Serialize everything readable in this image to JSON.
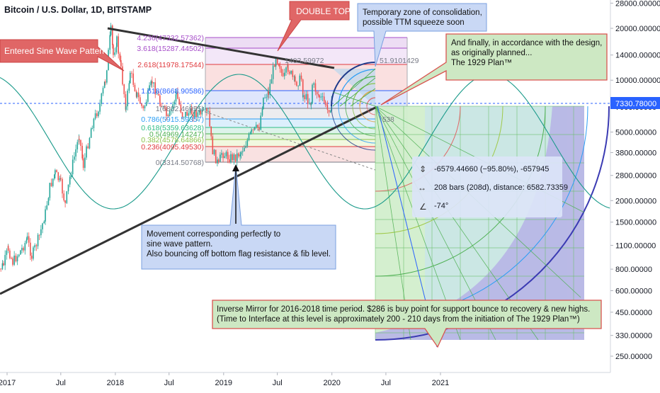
{
  "chart_data": {
    "type": "line",
    "title": "Bitcoin / U.S. Dollar, 1D, BITSTAMP",
    "scale": "log",
    "ylim": [
      220,
      28000
    ],
    "xlabel": "",
    "ylabel": "",
    "grid": false,
    "x_ticks": [
      {
        "date": "2017-01-01",
        "label": "2017"
      },
      {
        "date": "2017-07-01",
        "label": "Jul"
      },
      {
        "date": "2018-01-01",
        "label": "2018"
      },
      {
        "date": "2018-07-01",
        "label": "Jul"
      },
      {
        "date": "2019-01-01",
        "label": "2019"
      },
      {
        "date": "2019-07-01",
        "label": "Jul"
      },
      {
        "date": "2020-01-01",
        "label": "2020"
      },
      {
        "date": "2020-07-01",
        "label": "Jul"
      },
      {
        "date": "2021-01-01",
        "label": "2021"
      }
    ],
    "y_ticks": [
      "28000.00000",
      "20000.00000",
      "14000.00000",
      "10000.00000",
      "7000.00000",
      "5000.00000",
      "3800.00000",
      "2800.00000",
      "2000.00000",
      "1500.00000",
      "1100.00000",
      "800.00000",
      "600.00000",
      "450.00000",
      "330.00000",
      "250.00000"
    ],
    "y_tick_values": [
      28000,
      20000,
      14000,
      10000,
      7000,
      5000,
      3800,
      2800,
      2000,
      1500,
      1100,
      800,
      600,
      450,
      330,
      250
    ],
    "last_price": {
      "value": 7330.78,
      "label": "7330.78000",
      "color": "#2962ff"
    },
    "price_series": [
      {
        "x": "2016-11-20",
        "y": 740
      },
      {
        "x": "2016-12-20",
        "y": 850
      },
      {
        "x": "2017-01-05",
        "y": 1050
      },
      {
        "x": "2017-01-20",
        "y": 880
      },
      {
        "x": "2017-02-20",
        "y": 1050
      },
      {
        "x": "2017-03-10",
        "y": 1200
      },
      {
        "x": "2017-03-25",
        "y": 950
      },
      {
        "x": "2017-04-20",
        "y": 1250
      },
      {
        "x": "2017-05-10",
        "y": 1700
      },
      {
        "x": "2017-05-25",
        "y": 2400
      },
      {
        "x": "2017-06-12",
        "y": 2900
      },
      {
        "x": "2017-07-01",
        "y": 2500
      },
      {
        "x": "2017-07-16",
        "y": 1900
      },
      {
        "x": "2017-08-05",
        "y": 3000
      },
      {
        "x": "2017-09-01",
        "y": 4800
      },
      {
        "x": "2017-09-15",
        "y": 3200
      },
      {
        "x": "2017-10-15",
        "y": 5600
      },
      {
        "x": "2017-11-10",
        "y": 7200
      },
      {
        "x": "2017-11-28",
        "y": 10000
      },
      {
        "x": "2017-12-17",
        "y": 19500
      },
      {
        "x": "2017-12-25",
        "y": 14000
      },
      {
        "x": "2018-01-06",
        "y": 17000
      },
      {
        "x": "2018-01-20",
        "y": 11500
      },
      {
        "x": "2018-02-06",
        "y": 6900
      },
      {
        "x": "2018-02-20",
        "y": 11200
      },
      {
        "x": "2018-03-15",
        "y": 8200
      },
      {
        "x": "2018-04-05",
        "y": 6700
      },
      {
        "x": "2018-05-05",
        "y": 9800
      },
      {
        "x": "2018-06-01",
        "y": 7500
      },
      {
        "x": "2018-06-28",
        "y": 5900
      },
      {
        "x": "2018-07-25",
        "y": 8300
      },
      {
        "x": "2018-08-15",
        "y": 6300
      },
      {
        "x": "2018-09-15",
        "y": 6500
      },
      {
        "x": "2018-10-15",
        "y": 6400
      },
      {
        "x": "2018-11-10",
        "y": 6400
      },
      {
        "x": "2018-11-20",
        "y": 4500
      },
      {
        "x": "2018-11-25",
        "y": 3900
      },
      {
        "x": "2018-12-15",
        "y": 3200
      },
      {
        "x": "2018-12-25",
        "y": 3800
      },
      {
        "x": "2019-01-20",
        "y": 3550
      },
      {
        "x": "2019-02-10",
        "y": 3600
      },
      {
        "x": "2019-03-01",
        "y": 3850
      },
      {
        "x": "2019-04-05",
        "y": 4950
      },
      {
        "x": "2019-05-01",
        "y": 5400
      },
      {
        "x": "2019-05-15",
        "y": 7900
      },
      {
        "x": "2019-06-01",
        "y": 8500
      },
      {
        "x": "2019-06-26",
        "y": 13800
      },
      {
        "x": "2019-07-10",
        "y": 12200
      },
      {
        "x": "2019-07-20",
        "y": 10000
      },
      {
        "x": "2019-08-06",
        "y": 11800
      },
      {
        "x": "2019-08-30",
        "y": 9600
      },
      {
        "x": "2019-09-20",
        "y": 10200
      },
      {
        "x": "2019-09-26",
        "y": 8200
      },
      {
        "x": "2019-10-23",
        "y": 7400
      },
      {
        "x": "2019-10-27",
        "y": 9500
      },
      {
        "x": "2019-11-20",
        "y": 8000
      },
      {
        "x": "2019-12-10",
        "y": 7300
      },
      {
        "x": "2019-12-17",
        "y": 6700
      },
      {
        "x": "2019-12-31",
        "y": 7200
      },
      {
        "x": "2020-01-05",
        "y": 7330.78
      }
    ],
    "fib_levels": [
      {
        "label": "4.236(47332.57362)",
        "color": "#a64dc9",
        "fill": "#ead7f2"
      },
      {
        "label": "3.618(15287.44502)",
        "color": "#a64dc9",
        "fill": "#f1e3f7"
      },
      {
        "label": "2.618(11978.17544)",
        "color": "#e03a3e",
        "fill": "#f9dada"
      },
      {
        "label": "1.618(8668.90586)",
        "color": "#2962ff",
        "fill": "#d9e2fb"
      },
      {
        "label": "1(6802.46955)",
        "color": "#787b86",
        "fill": "#e9e9ec"
      },
      {
        "label": "0.786(5915.59357)",
        "color": "#2a9df4",
        "fill": "#d6ecfb"
      },
      {
        "label": "0.618(5359.63628)",
        "color": "#2ebd85",
        "fill": "#d7f1e6"
      },
      {
        "label": "0.5(4969.14247)",
        "color": "#4caf50",
        "fill": "#dff1d9"
      },
      {
        "label": "0.382(4578.64866)",
        "color": "#8bc34a",
        "fill": "#eef7d9"
      },
      {
        "label": "0.236(4095.49530)",
        "color": "#e03a3e",
        "fill": "#f8dcdc"
      },
      {
        "label": "0(3314.50768)",
        "color": "#787b86",
        "fill": "none"
      }
    ],
    "chart_labels": {
      "double_top_price": "1403.59972",
      "fan_price": "51.9101429",
      "fan_marker": "538"
    },
    "measure_box": {
      "price_change": "-6579.44660 (−95.80%), -657945",
      "bars": "208 bars (208d), distance: 6582.73359",
      "angle": "-74°"
    },
    "callouts": {
      "sine_wave": "Entered Sine Wave Pattern",
      "double_top": "DOUBLE TOP",
      "consolidation": [
        "Temporary zone of consolidation,",
        "possible TTM squeeze soon"
      ],
      "plan_1929": [
        "And finally, in accordance with the design,",
        "as originally planned...",
        "",
        "The 1929 Plan™"
      ],
      "movement": [
        "Movement corresponding perfectly to",
        "sine wave pattern.",
        "",
        "Also bouncing off bottom flag resistance & fib level."
      ],
      "inverse_mirror": [
        "Inverse Mirror for 2016-2018 time period. $286 is buy point for support bounce to recovery & new highs.",
        "(Time to Interface at this level is approximately 200 - 210 days from the initiation of The 1929 Plan™)"
      ]
    },
    "colors": {
      "up_candle": "#26a69a",
      "down_candle": "#ef5350",
      "trendline": "#333333",
      "sine_wave": "#1a9a8a",
      "red_callout": "#d9534f",
      "blue_callout": "#c9d8f5",
      "green_callout": "#cde8c3"
    }
  }
}
